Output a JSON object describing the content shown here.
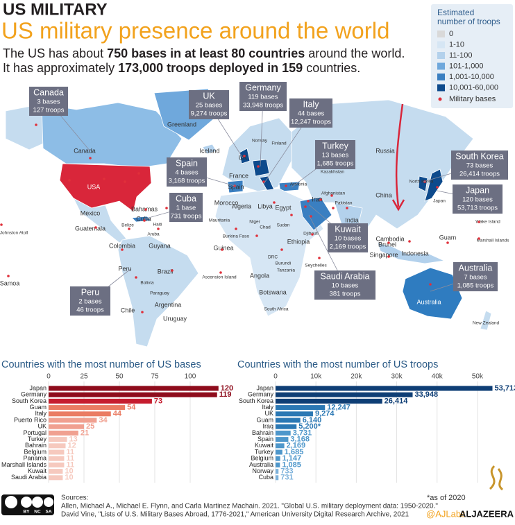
{
  "header": {
    "kicker": "US MILITARY",
    "title": "US military presence around the world",
    "subtitle": [
      [
        "The US has about ",
        "750 bases in at least 80 countries",
        " around the world."
      ],
      [
        "It has approximately ",
        "173,000 troops deployed in 159",
        " countries."
      ]
    ]
  },
  "legend": {
    "title": [
      "Estimated",
      "number of troops"
    ],
    "items": [
      {
        "label": "0",
        "color": "#d9d9d9"
      },
      {
        "label": "1-10",
        "color": "#d6e6f4"
      },
      {
        "label": "11-100",
        "color": "#b3d1ec"
      },
      {
        "label": "101-1,000",
        "color": "#6fa8dc"
      },
      {
        "label": "1,001-10,000",
        "color": "#3a7fc1"
      },
      {
        "label": "10,001-60,000",
        "color": "#0d4a8c"
      }
    ],
    "bases_label": "Military bases",
    "bases_color": "#e0303a"
  },
  "map_labels": [
    "Greenland",
    "Canada",
    "Iceland",
    "USA",
    "Mexico",
    "Bahamas",
    "Cuba",
    "Haiti",
    "Guatemala",
    "Belize",
    "Aruba",
    "Colombia",
    "Guyana",
    "Peru",
    "Brazil",
    "Bolivia",
    "Paraguay",
    "Argentina",
    "Chile",
    "Uruguay",
    "Johnston Atoll",
    "Samoa",
    "Ascension Island",
    "Norway",
    "Finland",
    "UK",
    "France",
    "Spain",
    "Morocco",
    "Algeria",
    "Libya",
    "Egypt",
    "Mauritania",
    "Chad",
    "Niger",
    "Sudan",
    "Burkina Faso",
    "Guinea",
    "Djibouti",
    "Ethiopia",
    "DRC",
    "Burundi",
    "Tanzania",
    "Seychelles",
    "Angola",
    "Botswana",
    "South Africa",
    "Russia",
    "Kazakhstan",
    "Armenia",
    "Iran",
    "Afghanistan",
    "Pakistan",
    "India",
    "China",
    "North Korea",
    "Japan",
    "Wake Island",
    "Guam",
    "Marshall Islands",
    "Cambodia",
    "Brunei",
    "Singapore",
    "Indonesia",
    "Australia",
    "New Zealand"
  ],
  "callouts": [
    {
      "name": "Canada",
      "bases": "3 bases",
      "troops": "127 troops"
    },
    {
      "name": "UK",
      "bases": "25 bases",
      "troops": "9,274 troops"
    },
    {
      "name": "Germany",
      "bases": "119 bases",
      "troops": "33,948 troops"
    },
    {
      "name": "Italy",
      "bases": "44 bases",
      "troops": "12,247 troops"
    },
    {
      "name": "Turkey",
      "bases": "13 bases",
      "troops": "1,685 troops"
    },
    {
      "name": "Spain",
      "bases": "4 bases",
      "troops": "3,168 troops"
    },
    {
      "name": "Cuba",
      "bases": "1 base",
      "troops": "731 troops"
    },
    {
      "name": "South Korea",
      "bases": "73 bases",
      "troops": "26,414 troops"
    },
    {
      "name": "Japan",
      "bases": "120 bases",
      "troops": "53,713 troops"
    },
    {
      "name": "Kuwait",
      "bases": "10 bases",
      "troops": "2,169 troops"
    },
    {
      "name": "Saudi Arabia",
      "bases": "10 bases",
      "troops": "381 troops"
    },
    {
      "name": "Australia",
      "bases": "7 bases",
      "troops": "1,085 troops"
    },
    {
      "name": "Peru",
      "bases": "2 bases",
      "troops": "46 troops"
    }
  ],
  "chart_data": [
    {
      "type": "bar",
      "orientation": "horizontal",
      "title": "Countries with the most number of US bases",
      "categories": [
        "Japan",
        "Germany",
        "South Korea",
        "Guam",
        "Italy",
        "Puerto Rico",
        "UK",
        "Portugal",
        "Turkey",
        "Bahrain",
        "Belgium",
        "Panama",
        "Marshall Islands",
        "Kuwait",
        "Saudi Arabia"
      ],
      "values": [
        120,
        119,
        73,
        54,
        44,
        34,
        25,
        21,
        13,
        12,
        11,
        11,
        11,
        10,
        10
      ],
      "colors": [
        "#8e0c1c",
        "#8e0c1c",
        "#c61d2f",
        "#ea7c63",
        "#ea7c63",
        "#f0a090",
        "#f0a090",
        "#f0a090",
        "#f6c9be",
        "#f6c9be",
        "#f6c9be",
        "#f6c9be",
        "#f6c9be",
        "#f6c9be",
        "#f6c9be"
      ],
      "xlim": [
        0,
        125
      ],
      "xticks": [
        0,
        25,
        50,
        75,
        100
      ],
      "grid": true
    },
    {
      "type": "bar",
      "orientation": "horizontal",
      "title": "Countries with the most number of US troops",
      "categories": [
        "Japan",
        "Germany",
        "South Korea",
        "Italy",
        "UK",
        "Guam",
        "Iraq",
        "Bahrain",
        "Spain",
        "Kuwait",
        "Turkey",
        "Belgium",
        "Australia",
        "Norway",
        "Cuba"
      ],
      "values": [
        53713,
        33948,
        26414,
        12247,
        9274,
        6140,
        5200,
        3731,
        3168,
        2169,
        1685,
        1147,
        1085,
        733,
        731
      ],
      "value_labels": [
        "53,713",
        "33,948",
        "26,414",
        "12,247",
        "9,274",
        "6,140",
        "5,200*",
        "3,731",
        "3,168",
        "2,169",
        "1,685",
        "1,147",
        "1,085",
        "733",
        "731"
      ],
      "colors": [
        "#0e3e75",
        "#0e3e75",
        "#0e3e75",
        "#2b78b4",
        "#2b78b4",
        "#2b78b4",
        "#2b78b4",
        "#4e97cb",
        "#4e97cb",
        "#4e97cb",
        "#4e97cb",
        "#4e97cb",
        "#4e97cb",
        "#7db2db",
        "#7db2db"
      ],
      "xlim": [
        0,
        55000
      ],
      "xticks": [
        0,
        {
          "value": 10000,
          "label": "10k"
        },
        {
          "value": 20000,
          "label": "20k"
        },
        {
          "value": 30000,
          "label": "30k"
        },
        {
          "value": 40000,
          "label": "40k"
        },
        {
          "value": 50000,
          "label": "50k"
        }
      ],
      "grid": true
    }
  ],
  "footer": {
    "sources_label": "Sources:",
    "sources": [
      "Allen, Michael A., Michael E. Flynn, and Carla Martinez Machain. 2021. \"Global U.S. military deployment data: 1950-2020.\"",
      "David Vine, \"Lists of U.S. Military Bases Abroad, 1776-2021,\" American University Digital Research Archive, 2021"
    ],
    "license": [
      "BY",
      "NC",
      "SA"
    ],
    "note": "*as of 2020",
    "handle": "@AJLabs",
    "brand": "ALJAZEERA"
  }
}
